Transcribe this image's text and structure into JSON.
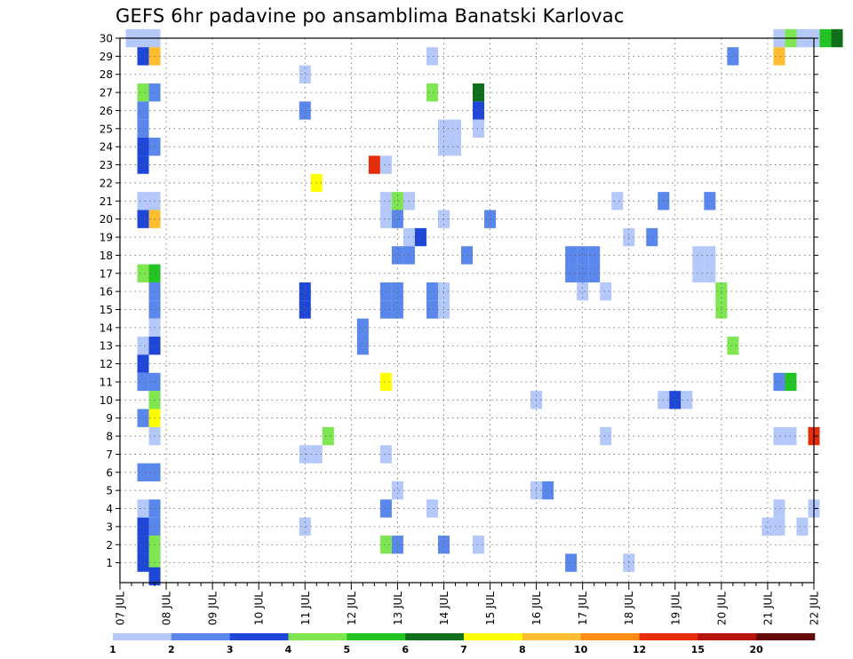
{
  "chart_data": {
    "type": "heatmap",
    "title": "GEFS 6hr padavine po ansamblima Banatski Karlovac",
    "x_ticks": [
      "07 JUL",
      "08 JUL",
      "09 JUL",
      "10 JUL",
      "11 JUL",
      "12 JUL",
      "13 JUL",
      "14 JUL",
      "15 JUL",
      "16 JUL",
      "17 JUL",
      "18 JUL",
      "19 JUL",
      "20 JUL",
      "21 JUL",
      "22 JUL"
    ],
    "y_ticks": [
      "1",
      "2",
      "3",
      "4",
      "5",
      "6",
      "7",
      "8",
      "9",
      "10",
      "11",
      "12",
      "13",
      "14",
      "15",
      "16",
      "17",
      "18",
      "19",
      "20",
      "21",
      "22",
      "23",
      "24",
      "25",
      "26",
      "27",
      "28",
      "29",
      "30"
    ],
    "x_range_days": [
      0,
      15
    ],
    "y_range": [
      0.25,
      30
    ],
    "grid": true,
    "colorbar": {
      "labels": [
        "1",
        "2",
        "3",
        "4",
        "5",
        "6",
        "7",
        "8",
        "10",
        "12",
        "15",
        "20"
      ],
      "colors": [
        "#b4c8fa",
        "#5a87eb",
        "#1e46d7",
        "#7de650",
        "#23c323",
        "#0f6e19",
        "#ffff00",
        "#ffbe32",
        "#ff8c14",
        "#e62d0a",
        "#b4140a",
        "#640a0a"
      ]
    },
    "cells": [
      [
        0.25,
        30,
        0
      ],
      [
        0.5,
        30,
        0
      ],
      [
        0.75,
        30,
        0
      ],
      [
        14.25,
        30,
        0
      ],
      [
        14.5,
        30,
        3
      ],
      [
        14.75,
        30,
        0
      ],
      [
        15.0,
        30,
        0
      ],
      [
        15.25,
        30,
        4
      ],
      [
        15.5,
        30,
        5
      ],
      [
        0.5,
        29,
        2
      ],
      [
        0.75,
        29,
        7
      ],
      [
        6.75,
        29,
        0
      ],
      [
        13.25,
        29,
        1
      ],
      [
        14.25,
        29,
        7
      ],
      [
        4.0,
        28,
        0
      ],
      [
        0.5,
        27,
        3
      ],
      [
        0.75,
        27,
        1
      ],
      [
        6.75,
        27,
        3
      ],
      [
        7.75,
        27,
        5
      ],
      [
        0.5,
        26,
        1
      ],
      [
        4.0,
        26,
        1
      ],
      [
        7.75,
        26,
        2
      ],
      [
        0.5,
        25,
        1
      ],
      [
        7.0,
        25,
        0
      ],
      [
        7.25,
        25,
        0
      ],
      [
        7.75,
        25,
        0
      ],
      [
        0.5,
        24,
        2
      ],
      [
        0.75,
        24,
        1
      ],
      [
        7.0,
        24,
        0
      ],
      [
        7.25,
        24,
        0
      ],
      [
        0.5,
        23,
        2
      ],
      [
        5.5,
        23,
        9
      ],
      [
        5.75,
        23,
        0
      ],
      [
        4.25,
        22,
        6
      ],
      [
        0.5,
        21,
        0
      ],
      [
        0.75,
        21,
        0
      ],
      [
        5.75,
        21,
        0
      ],
      [
        6.0,
        21,
        3
      ],
      [
        6.25,
        21,
        0
      ],
      [
        10.75,
        21,
        0
      ],
      [
        11.75,
        21,
        1
      ],
      [
        12.75,
        21,
        1
      ],
      [
        0.5,
        20,
        2
      ],
      [
        0.75,
        20,
        7
      ],
      [
        5.75,
        20,
        0
      ],
      [
        6.0,
        20,
        1
      ],
      [
        7.0,
        20,
        0
      ],
      [
        8.0,
        20,
        1
      ],
      [
        6.25,
        19,
        0
      ],
      [
        6.5,
        19,
        2
      ],
      [
        11.0,
        19,
        0
      ],
      [
        11.5,
        19,
        1
      ],
      [
        6.0,
        18,
        1
      ],
      [
        6.25,
        18,
        1
      ],
      [
        7.5,
        18,
        1
      ],
      [
        9.75,
        18,
        1
      ],
      [
        10.0,
        18,
        1
      ],
      [
        10.25,
        18,
        1
      ],
      [
        12.5,
        18,
        0
      ],
      [
        12.75,
        18,
        0
      ],
      [
        0.5,
        17,
        3
      ],
      [
        0.75,
        17,
        4
      ],
      [
        9.75,
        17,
        1
      ],
      [
        10.0,
        17,
        1
      ],
      [
        10.25,
        17,
        1
      ],
      [
        12.5,
        17,
        0
      ],
      [
        12.75,
        17,
        0
      ],
      [
        10.0,
        16,
        0
      ],
      [
        10.5,
        16,
        0
      ],
      [
        0.75,
        16,
        1
      ],
      [
        4.0,
        16,
        2
      ],
      [
        5.75,
        16,
        1
      ],
      [
        6.0,
        16,
        1
      ],
      [
        6.75,
        16,
        1
      ],
      [
        7.0,
        16,
        0
      ],
      [
        13.0,
        16,
        3
      ],
      [
        4.0,
        15,
        2
      ],
      [
        5.75,
        15,
        1
      ],
      [
        6.0,
        15,
        1
      ],
      [
        6.75,
        15,
        1
      ],
      [
        7.0,
        15,
        0
      ],
      [
        13.0,
        15,
        3
      ],
      [
        0.75,
        15,
        1
      ],
      [
        0.75,
        14,
        0
      ],
      [
        5.25,
        14,
        1
      ],
      [
        0.5,
        13,
        0
      ],
      [
        0.75,
        13,
        2
      ],
      [
        5.25,
        13,
        1
      ],
      [
        13.25,
        13,
        3
      ],
      [
        0.5,
        12,
        2
      ],
      [
        0.5,
        11,
        1
      ],
      [
        0.75,
        11,
        1
      ],
      [
        5.75,
        11,
        6
      ],
      [
        14.25,
        11,
        1
      ],
      [
        14.5,
        11,
        4
      ],
      [
        0.75,
        10,
        3
      ],
      [
        9.0,
        10,
        0
      ],
      [
        11.75,
        10,
        0
      ],
      [
        12.0,
        10,
        2
      ],
      [
        12.25,
        10,
        0
      ],
      [
        0.5,
        9,
        1
      ],
      [
        0.75,
        9,
        6
      ],
      [
        0.75,
        8,
        0
      ],
      [
        4.5,
        8,
        3
      ],
      [
        10.5,
        8,
        0
      ],
      [
        14.25,
        8,
        0
      ],
      [
        14.5,
        8,
        0
      ],
      [
        15.0,
        8,
        9
      ],
      [
        4.0,
        7,
        0
      ],
      [
        4.25,
        7,
        0
      ],
      [
        5.75,
        7,
        0
      ],
      [
        0.5,
        6,
        1
      ],
      [
        0.75,
        6,
        1
      ],
      [
        6.0,
        5,
        0
      ],
      [
        9.0,
        5,
        0
      ],
      [
        9.25,
        5,
        1
      ],
      [
        0.5,
        4,
        0
      ],
      [
        0.75,
        4,
        1
      ],
      [
        5.75,
        4,
        1
      ],
      [
        6.75,
        4,
        0
      ],
      [
        14.25,
        4,
        0
      ],
      [
        15.0,
        4,
        0
      ],
      [
        0.5,
        3,
        2
      ],
      [
        0.75,
        3,
        1
      ],
      [
        4.0,
        3,
        0
      ],
      [
        14.0,
        3,
        0
      ],
      [
        14.25,
        3,
        0
      ],
      [
        14.75,
        3,
        0
      ],
      [
        0.5,
        2,
        2
      ],
      [
        0.75,
        2,
        3
      ],
      [
        5.75,
        2,
        3
      ],
      [
        6.0,
        2,
        1
      ],
      [
        7.0,
        2,
        1
      ],
      [
        7.75,
        2,
        0
      ],
      [
        0.5,
        1,
        2
      ],
      [
        0.75,
        1,
        3
      ],
      [
        9.75,
        1,
        1
      ],
      [
        11.0,
        1,
        0
      ],
      [
        0.75,
        0.25,
        2
      ]
    ]
  }
}
